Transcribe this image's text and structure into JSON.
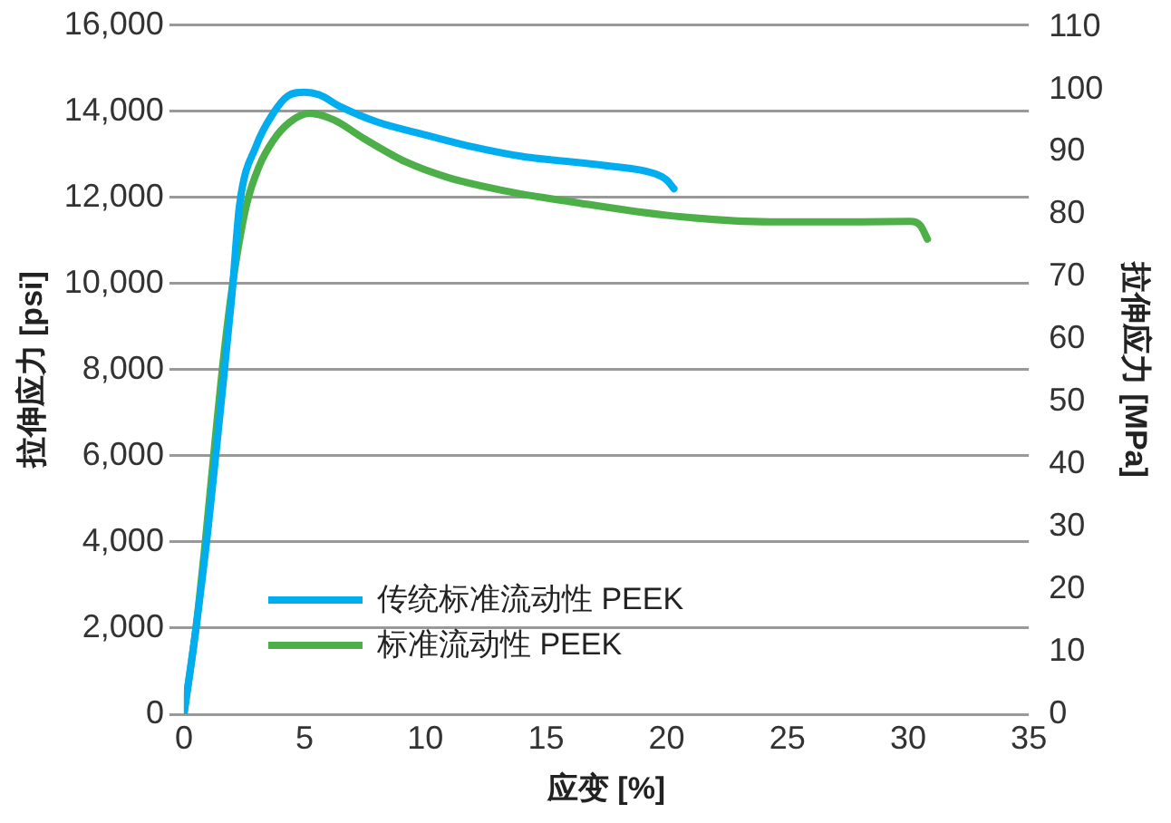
{
  "chart_data": {
    "type": "line",
    "xlabel": "应变 [%]",
    "ylabel": "拉伸应力 [psi]",
    "y2label": "拉伸应力 [MPa]",
    "xlim": [
      0,
      35
    ],
    "xticks": [
      0,
      5,
      10,
      15,
      20,
      25,
      30,
      35
    ],
    "ylim": [
      0,
      16000
    ],
    "yticks": [
      {
        "value": 0,
        "label": "0"
      },
      {
        "value": 2000,
        "label": "2,000"
      },
      {
        "value": 4000,
        "label": "4,000"
      },
      {
        "value": 6000,
        "label": "6,000"
      },
      {
        "value": 8000,
        "label": "8,000"
      },
      {
        "value": 10000,
        "label": "10,000"
      },
      {
        "value": 12000,
        "label": "12,000"
      },
      {
        "value": 14000,
        "label": "14,000"
      },
      {
        "value": 16000,
        "label": "16,000"
      }
    ],
    "y2lim": [
      0,
      110.3
    ],
    "y2ticks": [
      0,
      10,
      20,
      30,
      40,
      50,
      60,
      70,
      80,
      90,
      100,
      110
    ],
    "grid": "y",
    "legend": "bottom left",
    "marker": "none",
    "line_style": "solid",
    "series": [
      {
        "name": "传统标准流动性 PEEK",
        "color": "#00aeef",
        "x": [
          0,
          0.5,
          1,
          1.5,
          2,
          2.3,
          3,
          3.7,
          4.3,
          5,
          5.6,
          6.5,
          8,
          10,
          11.9,
          14,
          17.4,
          19.5,
          20,
          20.3
        ],
        "values": [
          0,
          2000,
          4300,
          7000,
          9800,
          11800,
          13200,
          13950,
          14350,
          14440,
          14380,
          14100,
          13750,
          13450,
          13180,
          12950,
          12740,
          12550,
          12400,
          12200
        ]
      },
      {
        "name": "标准流动性 PEEK",
        "color": "#4caf48",
        "x": [
          0,
          0.5,
          0.9,
          1.3,
          1.7,
          2.1,
          2.6,
          3.1,
          3.7,
          4.4,
          5.2,
          6.2,
          7.5,
          9.2,
          11,
          13.3,
          16,
          20.2,
          24.3,
          28,
          30.1,
          30.5,
          30.8
        ],
        "values": [
          0,
          2000,
          4080,
          6400,
          8560,
          10300,
          11840,
          12700,
          13320,
          13750,
          13950,
          13800,
          13350,
          12820,
          12450,
          12150,
          11900,
          11570,
          11430,
          11430,
          11440,
          11350,
          11030
        ]
      }
    ]
  }
}
